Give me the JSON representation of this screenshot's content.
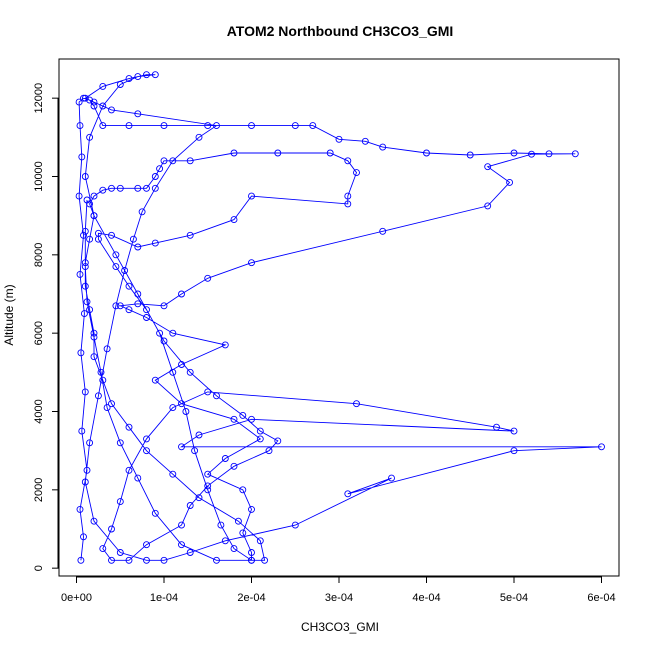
{
  "chart_data": {
    "type": "scatter",
    "title": "ATOM2 Northbound CH3CO3_GMI",
    "xlabel": "CH3CO3_GMI",
    "ylabel": "Altitude (m)",
    "xlim": [
      -2e-05,
      0.00062
    ],
    "ylim": [
      -200,
      13000
    ],
    "xticks": [
      0,
      0.0001,
      0.0002,
      0.0003,
      0.0004,
      0.0005,
      0.0006
    ],
    "xtick_labels": [
      "0e+00",
      "1e-04",
      "2e-04",
      "3e-04",
      "4e-04",
      "5e-04",
      "6e-04"
    ],
    "yticks": [
      0,
      2000,
      4000,
      6000,
      8000,
      10000,
      12000
    ],
    "ytick_labels": [
      "0",
      "2000",
      "4000",
      "6000",
      "8000",
      "10000",
      "12000"
    ],
    "grid": false,
    "legend": "none",
    "series": [
      {
        "color": "#0000ff",
        "marker": "open-circle",
        "connected": true,
        "points": [
          [
            5e-06,
            200
          ],
          [
            8e-06,
            800
          ],
          [
            4e-06,
            1500
          ],
          [
            1.2e-05,
            2500
          ],
          [
            6e-06,
            3500
          ],
          [
            1e-05,
            4500
          ],
          [
            5e-06,
            5500
          ],
          [
            9e-06,
            6500
          ],
          [
            4e-06,
            7500
          ],
          [
            8e-06,
            8500
          ],
          [
            3e-06,
            9500
          ],
          [
            6e-06,
            10500
          ],
          [
            4e-06,
            11300
          ],
          [
            3e-06,
            11900
          ],
          [
            8e-06,
            12000
          ],
          [
            1.5e-05,
            11950
          ],
          [
            2e-05,
            11800
          ],
          [
            3e-05,
            11300
          ],
          [
            6e-05,
            11300
          ],
          [
            0.0001,
            11300
          ],
          [
            0.00015,
            11300
          ],
          [
            0.0002,
            11300
          ],
          [
            0.00025,
            11300
          ],
          [
            0.00027,
            11300
          ],
          [
            0.0003,
            10950
          ],
          [
            0.00033,
            10900
          ],
          [
            0.00035,
            10750
          ],
          [
            0.0004,
            10600
          ],
          [
            0.00045,
            10550
          ],
          [
            0.0005,
            10600
          ],
          [
            0.00054,
            10580
          ],
          [
            0.00057,
            10580
          ],
          [
            0.00052,
            10570
          ],
          [
            0.00047,
            10250
          ],
          [
            0.000495,
            9850
          ],
          [
            0.00047,
            9250
          ],
          [
            0.00035,
            8600
          ],
          [
            0.0002,
            7800
          ],
          [
            0.00015,
            7400
          ],
          [
            0.00012,
            7000
          ],
          [
            0.0001,
            6700
          ],
          [
            7e-05,
            6750
          ],
          [
            5e-05,
            6700
          ],
          [
            6e-05,
            6600
          ],
          [
            8e-05,
            6400
          ],
          [
            0.00011,
            6000
          ],
          [
            0.00017,
            5700
          ],
          [
            0.00012,
            5200
          ],
          [
            9e-05,
            4800
          ],
          [
            0.00012,
            4200
          ],
          [
            0.00018,
            3800
          ],
          [
            0.00021,
            3300
          ],
          [
            0.00017,
            2800
          ],
          [
            0.00015,
            2400
          ],
          [
            0.00019,
            2000
          ],
          [
            0.0002,
            1500
          ],
          [
            0.00019,
            900
          ],
          [
            0.0002,
            400
          ],
          [
            0.0002,
            200
          ],
          [
            0.000215,
            200
          ],
          [
            0.00021,
            700
          ],
          [
            0.000185,
            1200
          ],
          [
            0.00014,
            1800
          ],
          [
            0.00011,
            2400
          ],
          [
            8e-05,
            3000
          ],
          [
            6e-05,
            3600
          ],
          [
            4e-05,
            4200
          ],
          [
            3e-05,
            4800
          ],
          [
            2e-05,
            5400
          ],
          [
            2e-05,
            6000
          ],
          [
            1.5e-05,
            6600
          ],
          [
            1e-05,
            7200
          ],
          [
            1e-05,
            7800
          ],
          [
            1.5e-05,
            8400
          ],
          [
            2e-05,
            9000
          ],
          [
            1.5e-05,
            9300
          ],
          [
            2e-05,
            9500
          ],
          [
            3e-05,
            9650
          ],
          [
            4e-05,
            9700
          ],
          [
            5e-05,
            9700
          ],
          [
            7e-05,
            9700
          ],
          [
            8e-05,
            9700
          ],
          [
            9e-05,
            10000
          ],
          [
            9.5e-05,
            10200
          ],
          [
            0.0001,
            10400
          ],
          [
            0.00013,
            10400
          ],
          [
            0.00018,
            10600
          ],
          [
            0.00023,
            10600
          ],
          [
            0.00029,
            10600
          ],
          [
            0.00031,
            10400
          ],
          [
            0.00032,
            10100
          ],
          [
            0.00031,
            9500
          ],
          [
            0.00031,
            9300
          ],
          [
            0.0002,
            9500
          ],
          [
            0.00018,
            8900
          ],
          [
            0.00013,
            8500
          ],
          [
            9e-05,
            8300
          ],
          [
            7e-05,
            8200
          ],
          [
            4e-05,
            8500
          ],
          [
            2.5e-05,
            8550
          ],
          [
            2.5e-05,
            8400
          ],
          [
            4.5e-05,
            7700
          ],
          [
            6e-05,
            7200
          ],
          [
            8e-05,
            6600
          ],
          [
            0.0001,
            5800
          ],
          [
            0.00013,
            5000
          ],
          [
            0.00016,
            4400
          ],
          [
            0.00019,
            3900
          ],
          [
            0.00021,
            3500
          ],
          [
            0.00023,
            3250
          ],
          [
            0.00022,
            3000
          ],
          [
            0.00018,
            2600
          ],
          [
            0.00015,
            2100
          ],
          [
            0.00013,
            1600
          ],
          [
            0.00012,
            1100
          ],
          [
            8e-05,
            600
          ],
          [
            6e-05,
            200
          ],
          [
            4e-05,
            200
          ],
          [
            3e-05,
            500
          ],
          [
            4e-05,
            1000
          ],
          [
            5e-05,
            1700
          ],
          [
            6e-05,
            2500
          ],
          [
            8e-05,
            3300
          ],
          [
            0.00011,
            4100
          ],
          [
            0.00015,
            4500
          ],
          [
            0.00032,
            4200
          ],
          [
            0.00048,
            3600
          ],
          [
            0.0005,
            3500
          ],
          [
            0.0002,
            3800
          ],
          [
            0.00014,
            3400
          ],
          [
            0.00012,
            3100
          ],
          [
            0.0006,
            3100
          ],
          [
            0.0005,
            3000
          ],
          [
            0.00031,
            1900
          ],
          [
            0.00036,
            2300
          ],
          [
            0.00025,
            1100
          ],
          [
            0.00017,
            700
          ],
          [
            0.00013,
            400
          ],
          [
            0.0001,
            200
          ],
          [
            8e-05,
            200
          ],
          [
            5e-05,
            400
          ],
          [
            2e-05,
            1200
          ],
          [
            1e-05,
            2200
          ],
          [
            1.5e-05,
            3200
          ],
          [
            2.5e-05,
            4400
          ],
          [
            3.5e-05,
            5600
          ],
          [
            4.5e-05,
            6700
          ],
          [
            5.5e-05,
            7600
          ],
          [
            6.5e-05,
            8400
          ],
          [
            7.5e-05,
            9100
          ],
          [
            9e-05,
            9700
          ],
          [
            0.00011,
            10400
          ],
          [
            0.00014,
            11000
          ],
          [
            0.00016,
            11300
          ],
          [
            7e-05,
            11600
          ],
          [
            4e-05,
            11700
          ],
          [
            2e-05,
            11900
          ],
          [
            1e-05,
            12000
          ],
          [
            3e-05,
            12300
          ],
          [
            6e-05,
            12500
          ],
          [
            8e-05,
            12600
          ],
          [
            9e-05,
            12600
          ],
          [
            7e-05,
            12550
          ],
          [
            5e-05,
            12350
          ],
          [
            3e-05,
            11800
          ],
          [
            1.5e-05,
            11000
          ],
          [
            1e-05,
            10000
          ],
          [
            2e-05,
            9000
          ],
          [
            4.5e-05,
            8000
          ],
          [
            7e-05,
            7000
          ],
          [
            9.5e-05,
            6000
          ],
          [
            0.00011,
            5000
          ],
          [
            0.000125,
            4000
          ],
          [
            0.000135,
            3000
          ],
          [
            0.00015,
            2000
          ],
          [
            0.000165,
            1100
          ],
          [
            0.00018,
            500
          ],
          [
            0.0002,
            200
          ],
          [
            0.00016,
            200
          ],
          [
            0.00012,
            600
          ],
          [
            9e-05,
            1400
          ],
          [
            7e-05,
            2300
          ],
          [
            5e-05,
            3200
          ],
          [
            3.5e-05,
            4100
          ],
          [
            2.8e-05,
            5000
          ],
          [
            2e-05,
            5900
          ],
          [
            1.2e-05,
            6800
          ],
          [
            1e-05,
            7700
          ],
          [
            1e-05,
            8600
          ],
          [
            1.2e-05,
            9400
          ]
        ]
      }
    ]
  }
}
